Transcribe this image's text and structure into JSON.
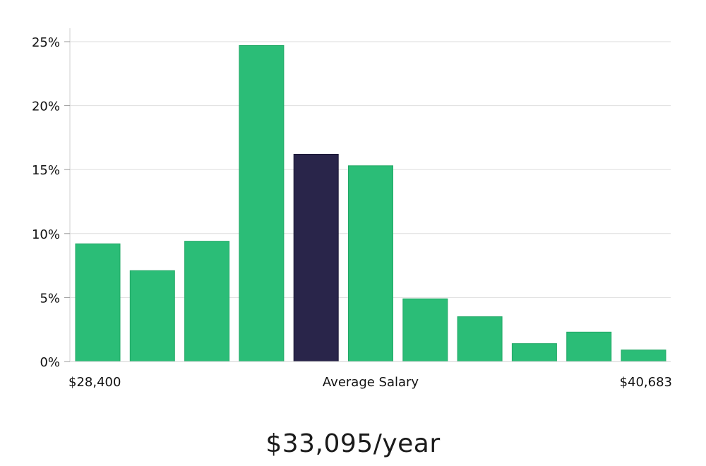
{
  "chart_data": {
    "type": "bar",
    "title": "",
    "xlabel": "Average Salary",
    "ylabel": "",
    "ylim": [
      0,
      26
    ],
    "y_ticks": [
      0,
      5,
      10,
      15,
      20,
      25
    ],
    "y_tick_labels": [
      "0%",
      "5%",
      "10%",
      "15%",
      "20%",
      "25%"
    ],
    "x_min_label": "$28,400",
    "x_max_label": "$40,683",
    "values": [
      9.2,
      7.1,
      9.4,
      24.7,
      16.2,
      15.3,
      4.9,
      3.5,
      1.4,
      2.3,
      0.9
    ],
    "highlight_index": 4,
    "bar_color": "#2bbd77",
    "highlight_color": "#29254a",
    "grid": true
  },
  "caption": {
    "salary": "$33,095/year"
  }
}
